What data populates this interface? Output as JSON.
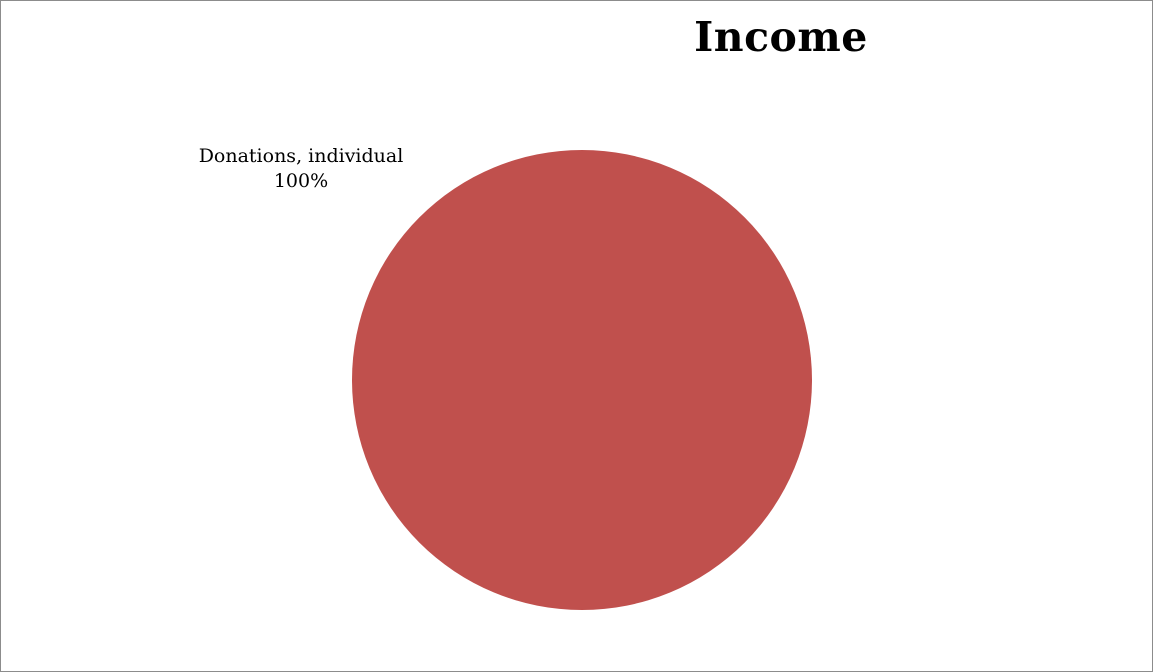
{
  "chart_data": {
    "type": "pie",
    "title": "Income",
    "slices": [
      {
        "label": "Donations, individual",
        "value": 100,
        "percent_label": "100%",
        "color": "#C0504D"
      }
    ]
  }
}
